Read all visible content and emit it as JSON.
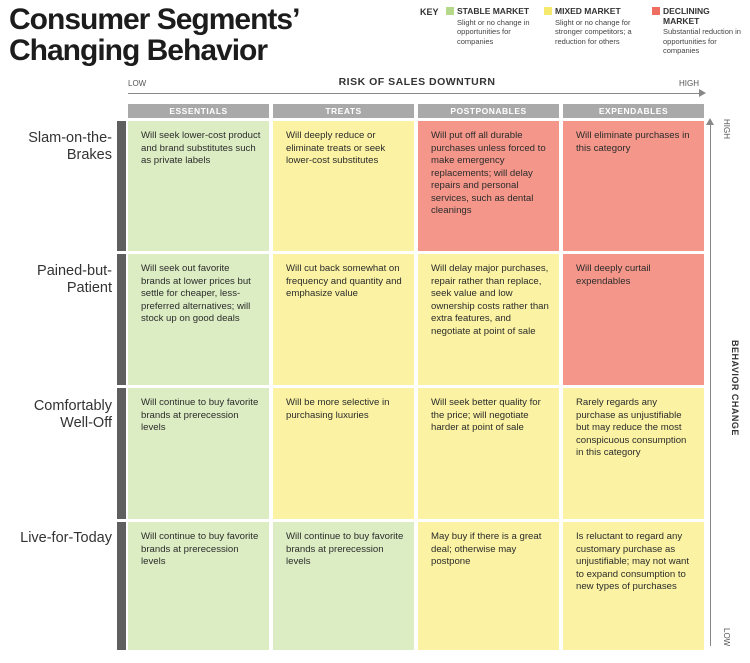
{
  "title": "Consumer Segments’ Changing Behavior",
  "key": {
    "label": "KEY",
    "items": [
      {
        "name": "STABLE MARKET",
        "description": "Slight or no change in opportunities for companies",
        "color": "#b5d88a"
      },
      {
        "name": "MIXED MARKET",
        "description": "Slight or no change for stronger competitors; a reduction for others",
        "color": "#f5ea6e"
      },
      {
        "name": "DECLINING MARKET",
        "description": "Substantial reduction in opportunities for companies",
        "color": "#ee6f60"
      }
    ]
  },
  "x_axis": {
    "title": "RISK OF SALES DOWNTURN",
    "low": "LOW",
    "high": "HIGH"
  },
  "y_axis": {
    "title": "BEHAVIOR CHANGE",
    "high": "HIGH",
    "low": "LOW"
  },
  "columns": [
    "ESSENTIALS",
    "TREATS",
    "POSTPONABLES",
    "EXPENDABLES"
  ],
  "rows": [
    {
      "label": "Slam-on-the-Brakes",
      "cells": [
        {
          "market": "stable",
          "text": "Will seek lower-cost product and brand substitutes such as private labels"
        },
        {
          "market": "mixed",
          "text": "Will deeply reduce or eliminate treats or seek lower-cost substitutes"
        },
        {
          "market": "declining",
          "text": "Will put off all durable purchases unless forced to make emergency replacements; will delay repairs and personal services, such as dental cleanings"
        },
        {
          "market": "declining",
          "text": "Will eliminate purchases in this category"
        }
      ]
    },
    {
      "label": "Pained-but-Patient",
      "cells": [
        {
          "market": "stable",
          "text": "Will seek out favorite brands at lower prices but settle for cheaper, less-preferred alterna­tives; will stock up on good deals"
        },
        {
          "market": "mixed",
          "text": "Will cut back some­what on frequency and quantity and empha­size value"
        },
        {
          "market": "mixed",
          "text": "Will delay major purchases, repair rather than replace, seek value and low ownership costs rather than extra features, and negotiate at point of sale"
        },
        {
          "market": "declining",
          "text": "Will deeply curtail expendables"
        }
      ]
    },
    {
      "label": "Comfortably Well-Off",
      "cells": [
        {
          "market": "stable",
          "text": "Will continue to buy favorite brands at prerecession levels"
        },
        {
          "market": "mixed",
          "text": "Will be more selective in purchasing luxuries"
        },
        {
          "market": "mixed",
          "text": "Will seek better quality for the price; will ne­gotiate harder at point of sale"
        },
        {
          "market": "mixed",
          "text": "Rarely regards any purchase as unjustifi­able but may reduce the most conspicuous consumption in this category"
        }
      ]
    },
    {
      "label": "Live-for-Today",
      "cells": [
        {
          "market": "stable",
          "text": "Will continue to buy favorite brands at prerecession levels"
        },
        {
          "market": "stable",
          "text": "Will continue to buy favorite brands at prerecession levels"
        },
        {
          "market": "mixed",
          "text": "May buy if there is a great deal; otherwise may postpone"
        },
        {
          "market": "mixed",
          "text": "Is reluctant to regard any customary purchase as unjustifi­able; may not want to expand consumption to new types of purchases"
        }
      ]
    }
  ]
}
